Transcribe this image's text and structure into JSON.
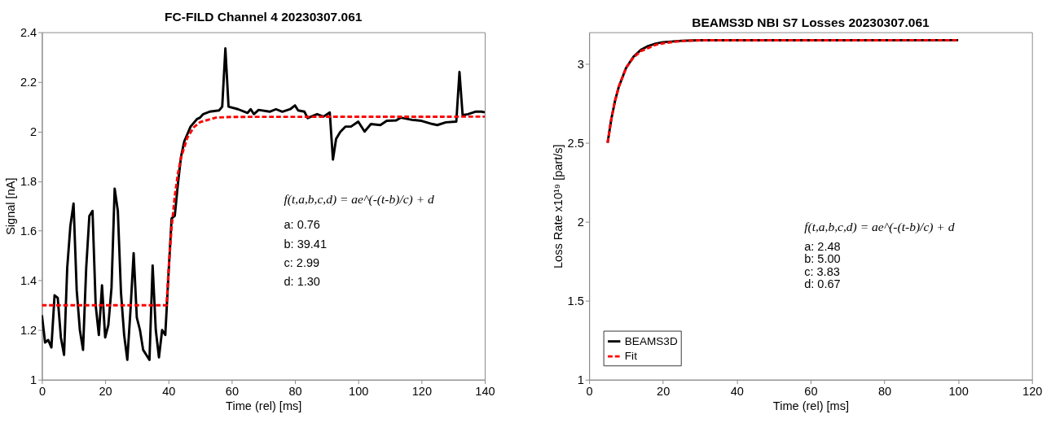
{
  "chart_data": [
    {
      "type": "line",
      "title": "FC-FILD Channel 4 20230307.061",
      "xlabel": "Time (rel) [ms]",
      "ylabel": "Signal [nA]",
      "xlim": [
        0,
        140
      ],
      "xticks": [
        0,
        20,
        40,
        60,
        80,
        100,
        120,
        140
      ],
      "ylim": [
        1,
        2.4
      ],
      "yticks": [
        1,
        1.2,
        1.4,
        1.6,
        1.8,
        2,
        2.2,
        2.4
      ],
      "grid": false,
      "legend": false,
      "series": [
        {
          "color": "#000000",
          "line_style": "solid",
          "x": [
            0,
            1,
            2,
            3,
            4,
            5,
            6,
            7,
            8,
            9,
            10,
            11,
            12,
            13,
            14,
            15,
            16,
            17,
            18,
            19,
            20,
            21,
            22,
            23,
            24,
            25,
            26,
            27,
            28,
            29,
            30,
            31,
            32,
            33,
            34,
            35,
            36,
            37,
            38,
            39,
            40,
            41,
            42,
            43,
            44,
            45,
            46,
            47,
            49,
            50,
            51,
            53,
            56,
            57,
            58,
            59,
            62,
            65,
            66,
            67,
            68.5,
            72,
            74,
            76,
            78.5,
            80,
            81,
            83,
            84,
            87,
            89,
            91,
            92,
            93,
            94.3,
            96,
            97.7,
            100,
            102,
            104,
            107,
            109,
            112,
            113.5,
            117,
            120,
            123.5,
            125,
            127.7,
            131,
            132,
            133,
            134.7,
            137,
            139,
            140
          ],
          "values": [
            1.26,
            1.15,
            1.16,
            1.13,
            1.34,
            1.33,
            1.17,
            1.1,
            1.45,
            1.62,
            1.71,
            1.36,
            1.2,
            1.12,
            1.45,
            1.66,
            1.68,
            1.3,
            1.18,
            1.38,
            1.17,
            1.22,
            1.37,
            1.77,
            1.68,
            1.35,
            1.18,
            1.08,
            1.28,
            1.51,
            1.25,
            1.2,
            1.12,
            1.1,
            1.08,
            1.46,
            1.2,
            1.09,
            1.2,
            1.18,
            1.42,
            1.65,
            1.66,
            1.79,
            1.9,
            1.96,
            1.99,
            2.02,
            2.05,
            2.056,
            2.07,
            2.08,
            2.085,
            2.1,
            2.335,
            2.1,
            2.09,
            2.075,
            2.09,
            2.07,
            2.087,
            2.08,
            2.09,
            2.08,
            2.09,
            2.105,
            2.085,
            2.08,
            2.054,
            2.07,
            2.06,
            2.077,
            1.887,
            1.97,
            1.998,
            2.02,
            2.02,
            2.04,
            2.0,
            2.03,
            2.026,
            2.043,
            2.045,
            2.056,
            2.047,
            2.043,
            2.03,
            2.026,
            2.037,
            2.04,
            2.24,
            2.066,
            2.07,
            2.08,
            2.08,
            2.077
          ]
        },
        {
          "color": "#ff0000",
          "line_style": "dashed",
          "x": [
            0,
            39.41,
            40,
            41,
            42,
            43,
            44,
            46,
            48,
            50,
            55,
            60,
            140
          ],
          "values": [
            1.3,
            1.3,
            1.436,
            1.613,
            1.74,
            1.831,
            1.896,
            1.976,
            2.017,
            2.038,
            2.056,
            2.059,
            2.06
          ]
        }
      ],
      "annotations": [
        "f(t,a,b,c,d) = ae^(-(t-b)/c) + d",
        "a: 0.76",
        "b: 39.41",
        "c: 2.99",
        "d: 1.30"
      ]
    },
    {
      "type": "line",
      "title": "BEAMS3D NBI S7 Losses 20230307.061",
      "xlabel": "Time (rel) [ms]",
      "ylabel": "Loss Rate x10¹⁹ [part/s]",
      "xlim": [
        0,
        120
      ],
      "xticks": [
        0,
        20,
        40,
        60,
        80,
        100,
        120
      ],
      "ylim": [
        1,
        3.2
      ],
      "yticks": [
        1,
        1.5,
        2,
        2.5,
        3
      ],
      "grid": false,
      "legend": "bottom left",
      "series": [
        {
          "name": "BEAMS3D",
          "color": "#000000",
          "line_style": "solid",
          "x": [
            5,
            6,
            7,
            8,
            10,
            12,
            14,
            16,
            18,
            20,
            25,
            30,
            100
          ],
          "values": [
            2.5,
            2.65,
            2.765,
            2.853,
            2.974,
            3.045,
            3.088,
            3.113,
            3.128,
            3.137,
            3.146,
            3.149,
            3.15
          ]
        },
        {
          "name": "Fit",
          "color": "#ff0000",
          "line_style": "dashed",
          "x": [
            5,
            6,
            7,
            8,
            10,
            12,
            14,
            16,
            18,
            20,
            25,
            30,
            100
          ],
          "values": [
            2.5,
            2.65,
            2.765,
            2.853,
            2.974,
            3.04,
            3.08,
            3.1,
            3.12,
            3.13,
            3.145,
            3.149,
            3.15
          ]
        }
      ],
      "annotations": [
        "f(t,a,b,c,d) = ae^(-(t-b)/c) + d",
        "a: 2.48",
        "b: 5.00",
        "c: 3.83",
        "d: 0.67"
      ]
    }
  ]
}
